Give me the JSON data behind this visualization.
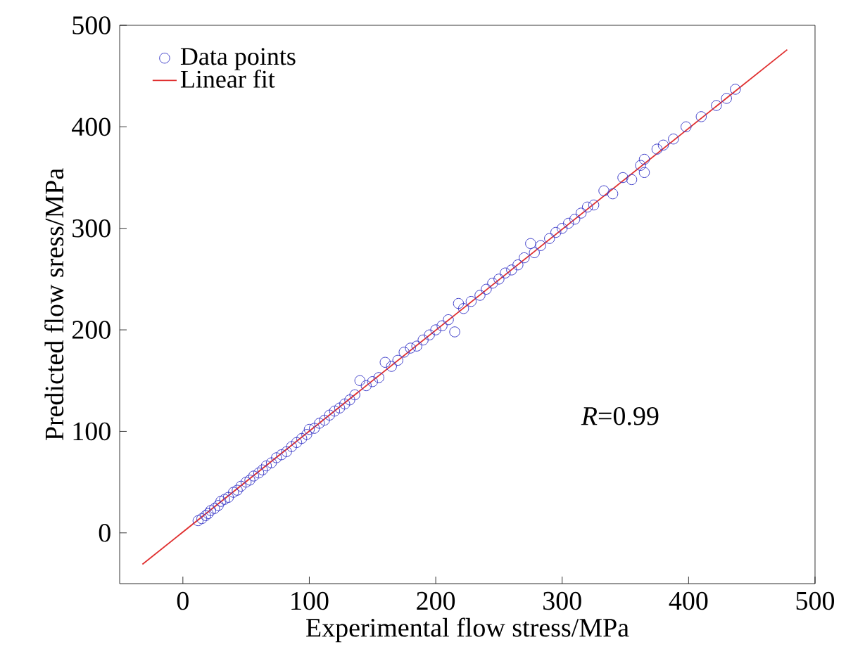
{
  "chart_data": {
    "type": "scatter",
    "xlabel": "Experimental flow stress/MPa",
    "ylabel": "Predicted flow sress/MPa",
    "xlim": [
      -50,
      500
    ],
    "ylim": [
      -50,
      500
    ],
    "xticks": [
      0,
      100,
      200,
      300,
      400,
      500
    ],
    "yticks": [
      0,
      100,
      200,
      300,
      400,
      500
    ],
    "legend": "top left",
    "annotations": [
      "*R*=0.99"
    ],
    "series": [
      {
        "name": "Data points",
        "marker": "circle",
        "color": "#3b3bc8",
        "x": [
          12,
          15,
          18,
          20,
          22,
          25,
          28,
          30,
          33,
          36,
          40,
          43,
          46,
          50,
          53,
          56,
          60,
          63,
          66,
          70,
          74,
          78,
          82,
          86,
          90,
          94,
          98,
          100,
          104,
          108,
          112,
          116,
          120,
          124,
          128,
          132,
          136,
          140,
          145,
          150,
          155,
          160,
          165,
          170,
          175,
          180,
          185,
          190,
          195,
          200,
          205,
          210,
          215,
          218,
          222,
          228,
          235,
          240,
          245,
          250,
          255,
          260,
          265,
          270,
          275,
          278,
          283,
          290,
          295,
          300,
          305,
          310,
          315,
          320,
          325,
          333,
          340,
          348,
          355,
          362,
          365,
          365,
          375,
          380,
          388,
          398,
          410,
          422,
          430,
          437
        ],
        "values": [
          12,
          14,
          17,
          19,
          22,
          24,
          27,
          31,
          33,
          35,
          40,
          42,
          46,
          50,
          52,
          56,
          59,
          62,
          66,
          69,
          74,
          77,
          80,
          85,
          89,
          93,
          97,
          102,
          103,
          108,
          111,
          116,
          120,
          123,
          127,
          131,
          136,
          150,
          145,
          149,
          153,
          168,
          164,
          170,
          178,
          182,
          184,
          190,
          195,
          200,
          204,
          210,
          198,
          226,
          221,
          228,
          234,
          240,
          246,
          250,
          256,
          259,
          264,
          271,
          285,
          276,
          283,
          290,
          296,
          300,
          305,
          309,
          315,
          321,
          323,
          337,
          334,
          350,
          348,
          362,
          368,
          355,
          378,
          382,
          388,
          400,
          410,
          421,
          428,
          437
        ]
      },
      {
        "name": "Linear fit",
        "type": "line",
        "color": "#e03030",
        "line_style": "solid",
        "x": [
          -32,
          478
        ],
        "values": [
          -31,
          476
        ]
      }
    ]
  }
}
